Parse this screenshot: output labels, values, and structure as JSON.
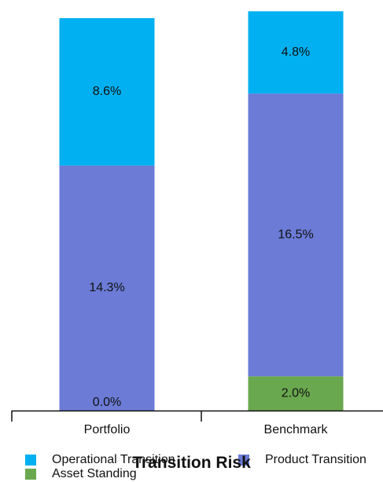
{
  "chart_data": {
    "type": "bar",
    "stacked": true,
    "title": "Transition Risk",
    "categories": [
      "Portfolio",
      "Benchmark"
    ],
    "series": [
      {
        "name": "Asset Standing",
        "label": "Asset Standing",
        "color": "#6aa84f",
        "values": [
          0.0,
          2.0
        ],
        "labels": [
          "0.0%",
          "2.0%"
        ]
      },
      {
        "name": "Product Transition",
        "label": "Product Transition",
        "color": "#6b7bd6",
        "values": [
          14.3,
          16.5
        ],
        "labels": [
          "14.3%",
          "16.5%"
        ]
      },
      {
        "name": "Operational Transition",
        "label": "Operational Transition",
        "color": "#00b0f0",
        "values": [
          8.6,
          4.8
        ],
        "labels": [
          "8.6%",
          "4.8%"
        ]
      }
    ],
    "ylim": [
      0,
      23.5
    ],
    "grid": false,
    "legend_position": "bottom"
  },
  "legend": {
    "operational": "Operational Transition",
    "product": "Product Transition",
    "asset": "Asset Standing"
  }
}
